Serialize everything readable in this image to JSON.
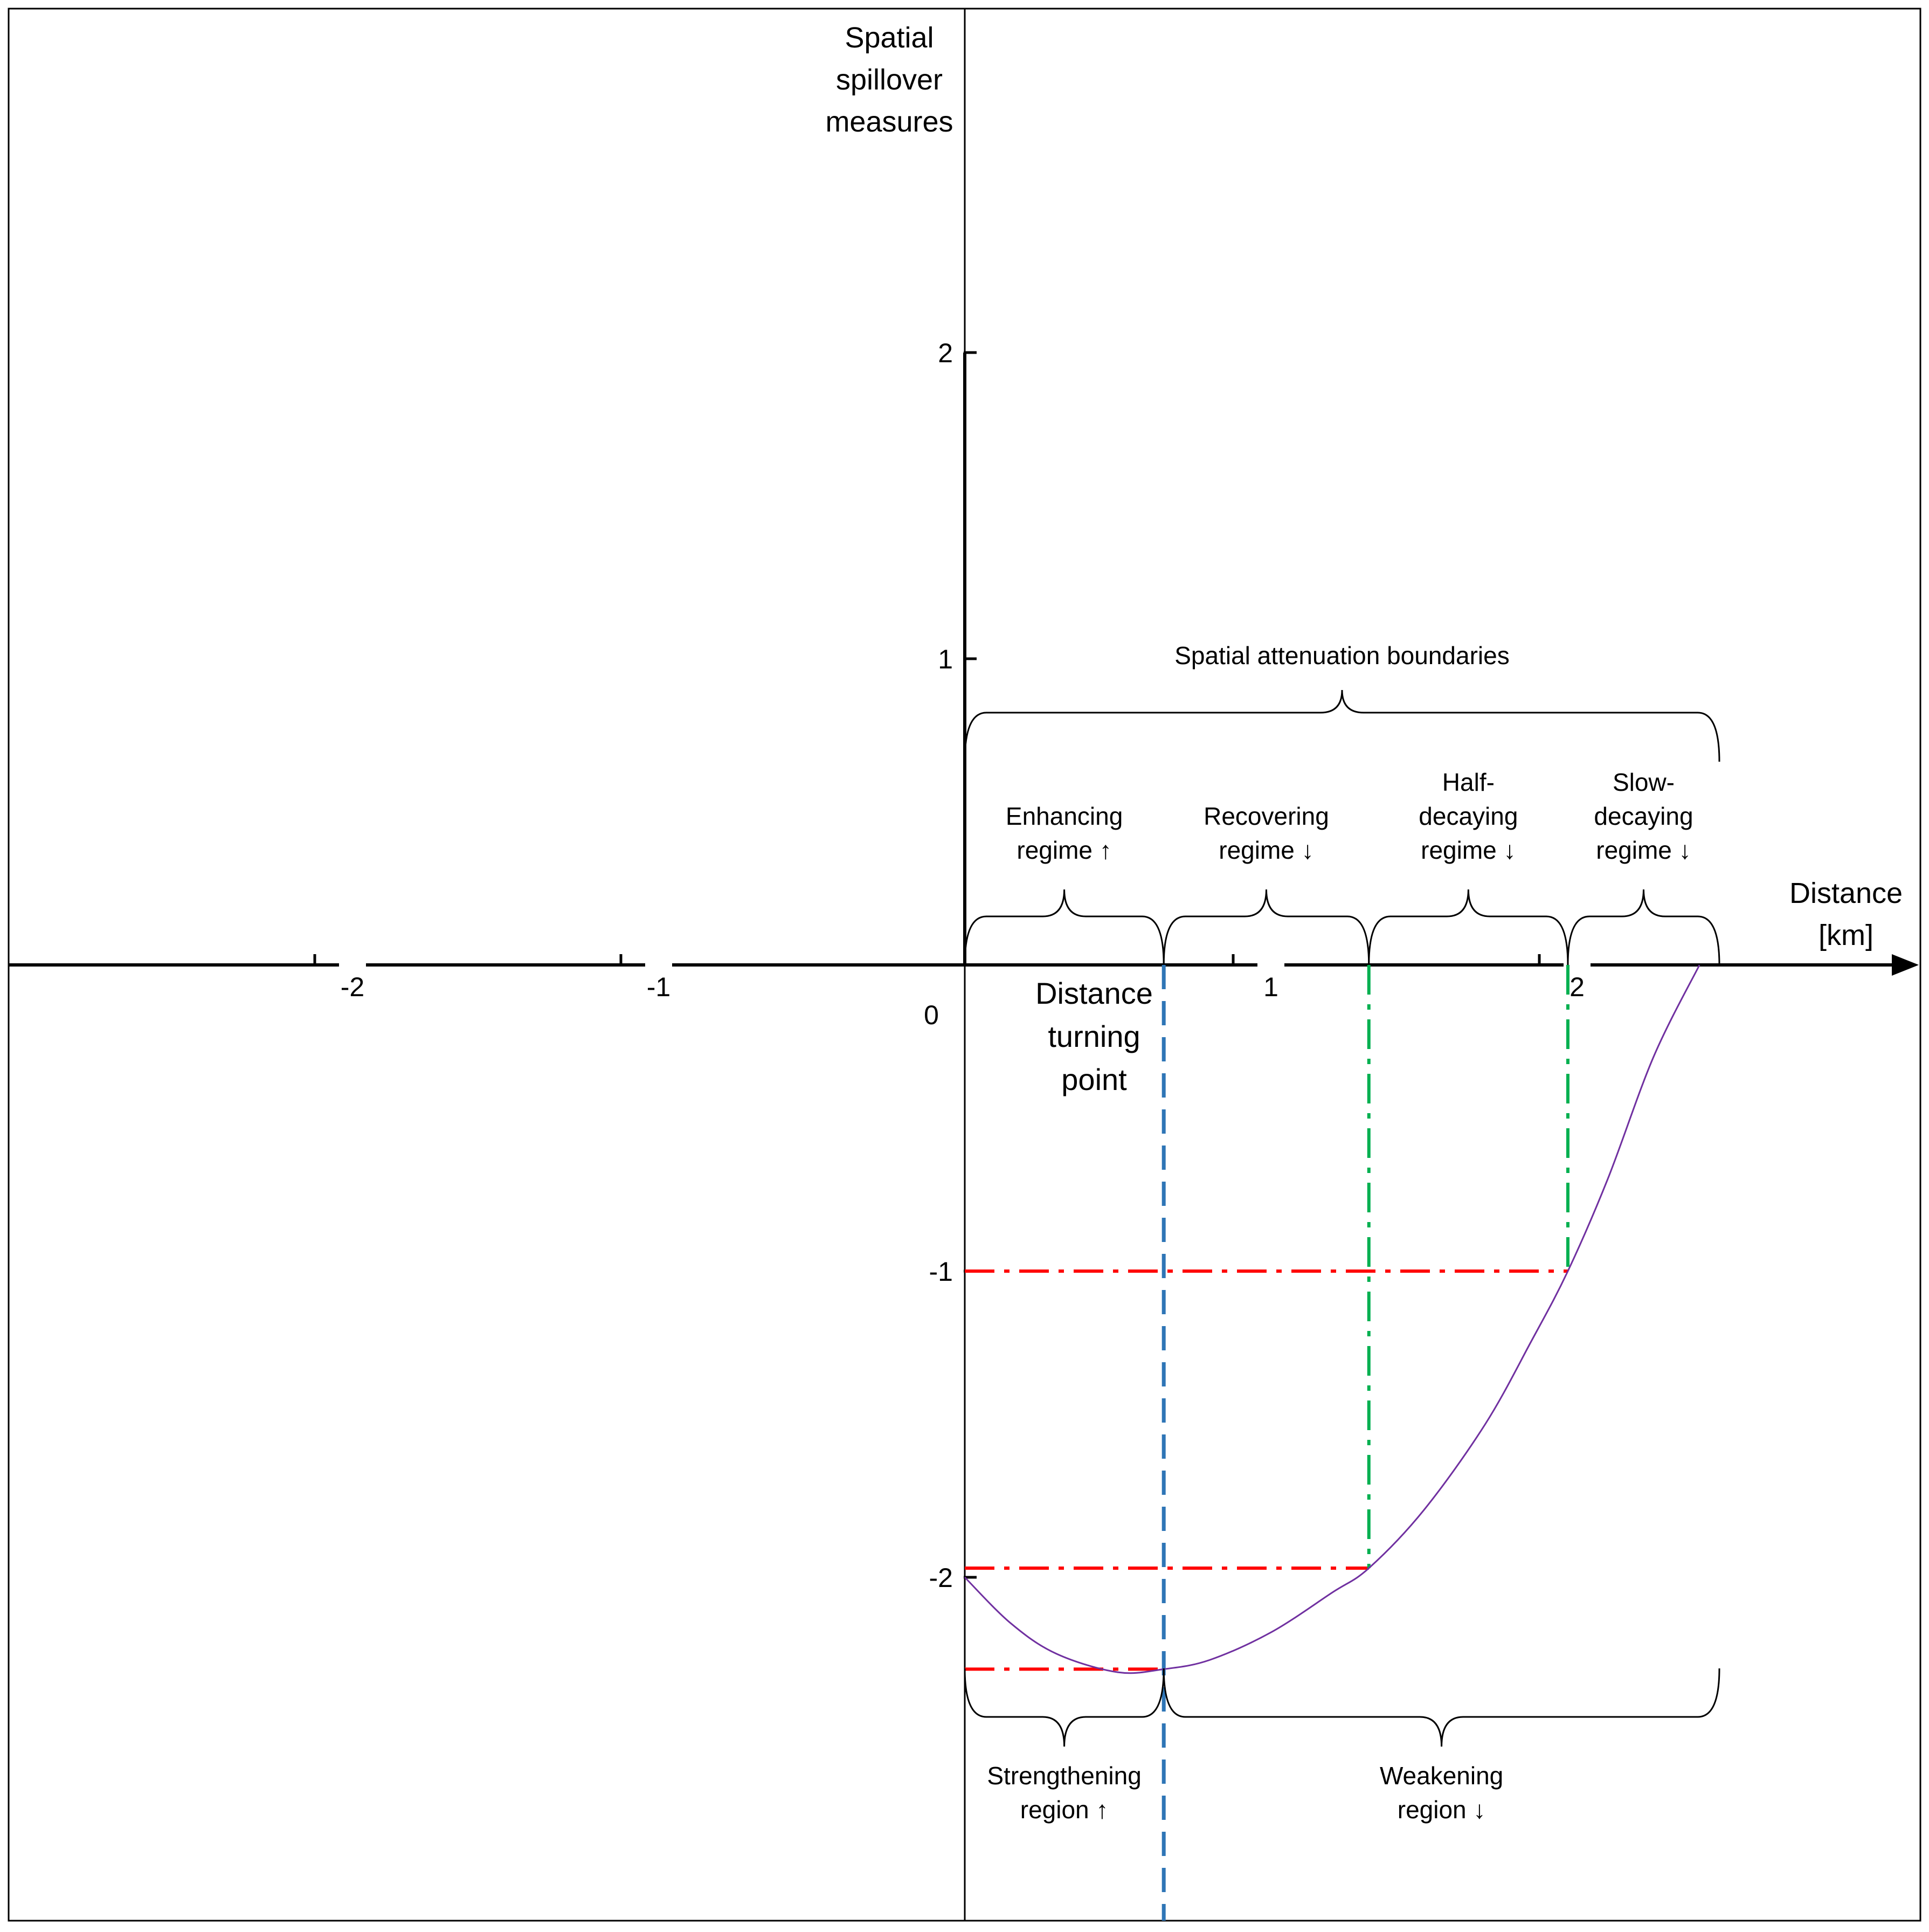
{
  "y_axis": {
    "title_lines": [
      "Spatial",
      "spillover",
      "measures"
    ],
    "ticks": [
      {
        "value": 2,
        "label": "2"
      },
      {
        "value": 1,
        "label": "1"
      },
      {
        "value": -1,
        "label": "-1"
      },
      {
        "value": -2,
        "label": "-2"
      }
    ]
  },
  "x_axis": {
    "title_lines": [
      "Distance",
      "[km]"
    ],
    "ticks": [
      {
        "value": -2,
        "label": "-2"
      },
      {
        "value": -1,
        "label": "-1"
      },
      {
        "value": 1,
        "label": "1"
      },
      {
        "value": 2,
        "label": "2"
      }
    ],
    "origin_label": "0"
  },
  "curve": {
    "color": "#7030a0",
    "points": [
      [
        0,
        -2
      ],
      [
        0.15,
        -2.15
      ],
      [
        0.3,
        -2.25
      ],
      [
        0.5,
        -2.31
      ],
      [
        0.65,
        -2.3
      ],
      [
        0.8,
        -2.27
      ],
      [
        1.0,
        -2.18
      ],
      [
        1.2,
        -2.05
      ],
      [
        1.32,
        -1.97
      ],
      [
        1.5,
        -1.78
      ],
      [
        1.7,
        -1.5
      ],
      [
        1.85,
        -1.23
      ],
      [
        1.97,
        -1.0
      ],
      [
        2.1,
        -0.7
      ],
      [
        2.25,
        -0.3
      ],
      [
        2.4,
        0.0
      ]
    ]
  },
  "guides": {
    "turning_x": 0.65,
    "half_decay_x": 1.32,
    "slow_decay_x": 1.97,
    "min_y": -2.3,
    "half_y": -1.97,
    "one_y": -1.0,
    "blue": "#2e75b6",
    "red": "#ff0000",
    "green": "#00b050"
  },
  "annotations": {
    "top_brace": "Spatial attenuation boundaries",
    "regimes": [
      {
        "lines": [
          "Enhancing",
          "regime ↑"
        ]
      },
      {
        "lines": [
          "Recovering",
          "regime ↓"
        ]
      },
      {
        "lines": [
          "Half-",
          "decaying",
          "regime ↓"
        ]
      },
      {
        "lines": [
          "Slow-",
          "decaying",
          "regime ↓"
        ]
      }
    ],
    "turning_point_lines": [
      "Distance",
      "turning",
      "point"
    ],
    "regions": [
      {
        "lines": [
          "Strengthening",
          "region ↑"
        ]
      },
      {
        "lines": [
          "Weakening",
          "region ↓"
        ]
      }
    ]
  }
}
